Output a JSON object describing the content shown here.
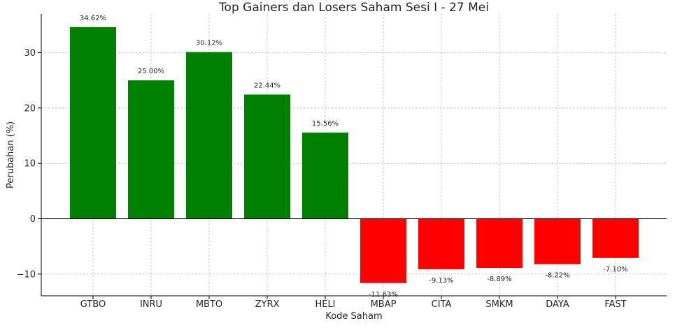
{
  "chart_data": {
    "type": "bar",
    "title": "Top Gainers dan Losers Saham Sesi I - 27 Mei",
    "xlabel": "Kode Saham",
    "ylabel": "Perubahan (%)",
    "categories": [
      "GTBO",
      "INRU",
      "MBTO",
      "ZYRX",
      "HELI",
      "MBAP",
      "CITA",
      "SMKM",
      "DAYA",
      "FAST"
    ],
    "values": [
      34.62,
      25.0,
      30.12,
      22.44,
      15.56,
      -11.63,
      -9.13,
      -8.89,
      -8.22,
      -7.1
    ],
    "data_labels": [
      "34.62%",
      "25.00%",
      "30.12%",
      "22.44%",
      "15.56%",
      "-11.63%",
      "-9.13%",
      "-8.89%",
      "-8.22%",
      "-7.10%"
    ],
    "ylim": [
      -14,
      37
    ],
    "yticks": [
      -10,
      0,
      10,
      20,
      30
    ],
    "ytick_labels": [
      "−10",
      "0",
      "10",
      "20",
      "30"
    ],
    "grid": true,
    "colors": {
      "gainer": "#008000",
      "loser": "#ff0000"
    }
  }
}
